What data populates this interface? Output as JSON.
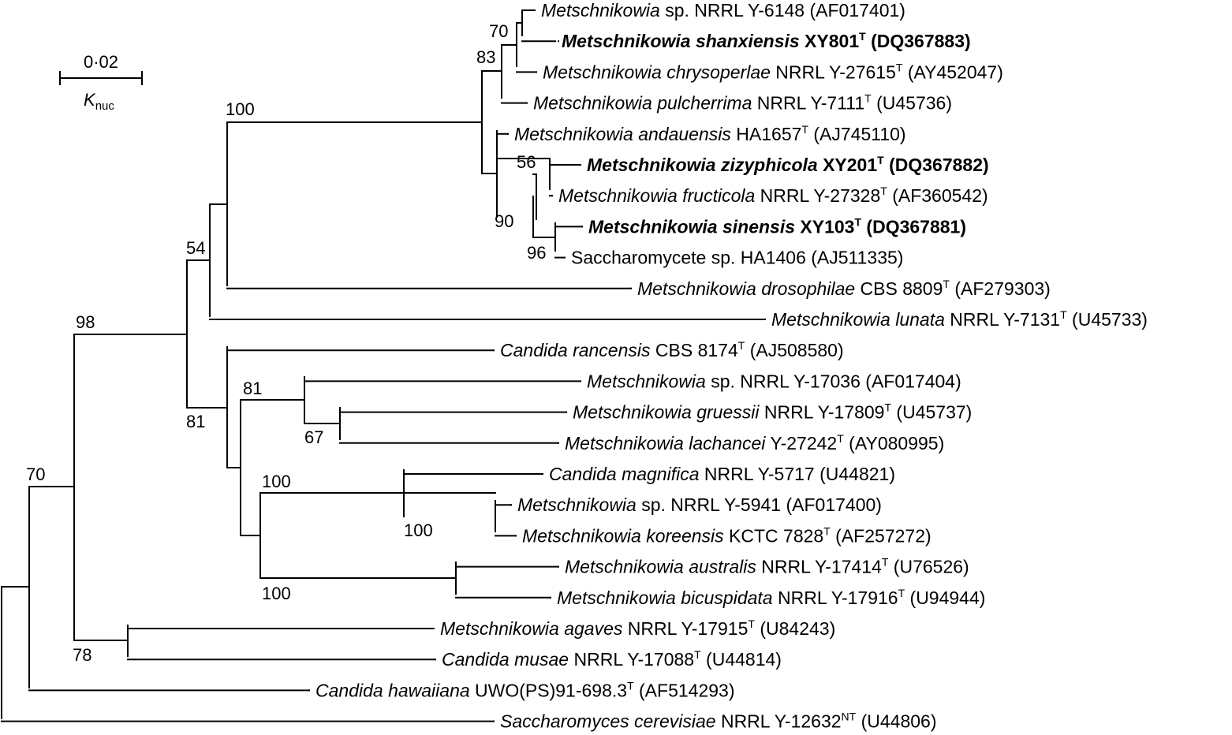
{
  "scale_bar": {
    "value": "0·02",
    "unit_main": "K",
    "unit_sub": "nuc"
  },
  "leaves": [
    {
      "id": "L1",
      "name": "Metschnikowia",
      "rest": " sp. NRRL Y-6148 (AF017401)",
      "sup": "",
      "tail": "",
      "bold": false
    },
    {
      "id": "L2",
      "name": "Metschnikowia shanxiensis",
      "rest": " XY801",
      "sup": "T",
      "tail": " (DQ367883)",
      "bold": true
    },
    {
      "id": "L3",
      "name": "Metschnikowia chrysoperlae",
      "rest": " NRRL Y-27615",
      "sup": "T",
      "tail": " (AY452047)",
      "bold": false
    },
    {
      "id": "L4",
      "name": "Metschnikowia pulcherrima",
      "rest": " NRRL Y-7111",
      "sup": "T",
      "tail": " (U45736)",
      "bold": false
    },
    {
      "id": "L5",
      "name": "Metschnikowia andauensis",
      "rest": " HA1657",
      "sup": "T",
      "tail": " (AJ745110)",
      "bold": false
    },
    {
      "id": "L6",
      "name": "Metschnikowia zizyphicola",
      "rest": " XY201",
      "sup": "T",
      "tail": " (DQ367882)",
      "bold": true
    },
    {
      "id": "L7",
      "name": "Metschnikowia fructicola",
      "rest": " NRRL Y-27328",
      "sup": "T",
      "tail": " (AF360542)",
      "bold": false
    },
    {
      "id": "L8",
      "name": "Metschnikowia sinensis",
      "rest": " XY103",
      "sup": "T",
      "tail": " (DQ367881)",
      "bold": true
    },
    {
      "id": "L9",
      "name": "",
      "rest": "Saccharomycete sp. HA1406 (AJ511335)",
      "sup": "",
      "tail": "",
      "bold": false
    },
    {
      "id": "L10",
      "name": "Metschnikowia drosophilae",
      "rest": " CBS 8809",
      "sup": "T",
      "tail": " (AF279303)",
      "bold": false
    },
    {
      "id": "L11",
      "name": "Metschnikowia lunata",
      "rest": " NRRL Y-7131",
      "sup": "T",
      "tail": " (U45733)",
      "bold": false
    },
    {
      "id": "L12",
      "name": "Candida rancensis",
      "rest": " CBS 8174",
      "sup": "T",
      "tail": " (AJ508580)",
      "bold": false
    },
    {
      "id": "L13",
      "name": "Metschnikowia",
      "rest": " sp. NRRL Y-17036 (AF017404)",
      "sup": "",
      "tail": "",
      "bold": false
    },
    {
      "id": "L14",
      "name": "Metschnikowia gruessii",
      "rest": " NRRL Y-17809",
      "sup": "T",
      "tail": " (U45737)",
      "bold": false
    },
    {
      "id": "L15",
      "name": "Metschnikowia lachancei",
      "rest": " Y-27242",
      "sup": "T",
      "tail": " (AY080995)",
      "bold": false
    },
    {
      "id": "L16",
      "name": "Candida magnifica",
      "rest": " NRRL Y-5717 (U44821)",
      "sup": "",
      "tail": "",
      "bold": false
    },
    {
      "id": "L17",
      "name": "Metschnikowia",
      "rest": " sp. NRRL Y-5941 (AF017400)",
      "sup": "",
      "tail": "",
      "bold": false
    },
    {
      "id": "L18",
      "name": "Metschnikowia koreensis",
      "rest": " KCTC 7828",
      "sup": "T",
      "tail": " (AF257272)",
      "bold": false
    },
    {
      "id": "L19",
      "name": "Metschnikowia australis",
      "rest": " NRRL Y-17414",
      "sup": "T",
      "tail": " (U76526)",
      "bold": false
    },
    {
      "id": "L20",
      "name": "Metschnikowia bicuspidata",
      "rest": " NRRL Y-17916",
      "sup": "T",
      "tail": " (U94944)",
      "bold": false
    },
    {
      "id": "L21",
      "name": "Metschnikowia agaves",
      "rest": " NRRL Y-17915",
      "sup": "T",
      "tail": " (U84243)",
      "bold": false
    },
    {
      "id": "L22",
      "name": "Candida musae",
      "rest": " NRRL Y-17088",
      "sup": "T",
      "tail": " (U44814)",
      "bold": false
    },
    {
      "id": "L23",
      "name": "Candida hawaiiana",
      "rest": " UWO(PS)91-698.3",
      "sup": "T",
      "tail": " (AF514293)",
      "bold": false
    },
    {
      "id": "L24",
      "name": "Saccharomyces cerevisiae",
      "rest": " NRRL Y-12632",
      "sup": "NT",
      "tail": " (U44806)",
      "bold": false
    }
  ],
  "support_values": [
    {
      "id": "S1",
      "value": "70"
    },
    {
      "id": "S2",
      "value": "83"
    },
    {
      "id": "S3",
      "value": "100"
    },
    {
      "id": "S4",
      "value": "56"
    },
    {
      "id": "S5",
      "value": "90"
    },
    {
      "id": "S6",
      "value": "96"
    },
    {
      "id": "S7",
      "value": "54"
    },
    {
      "id": "S8",
      "value": "98"
    },
    {
      "id": "S9",
      "value": "81"
    },
    {
      "id": "S10",
      "value": "81"
    },
    {
      "id": "S11",
      "value": "67"
    },
    {
      "id": "S12",
      "value": "100"
    },
    {
      "id": "S13",
      "value": "100"
    },
    {
      "id": "S14",
      "value": "100"
    },
    {
      "id": "S15",
      "value": "70"
    },
    {
      "id": "S16",
      "value": "78"
    }
  ]
}
